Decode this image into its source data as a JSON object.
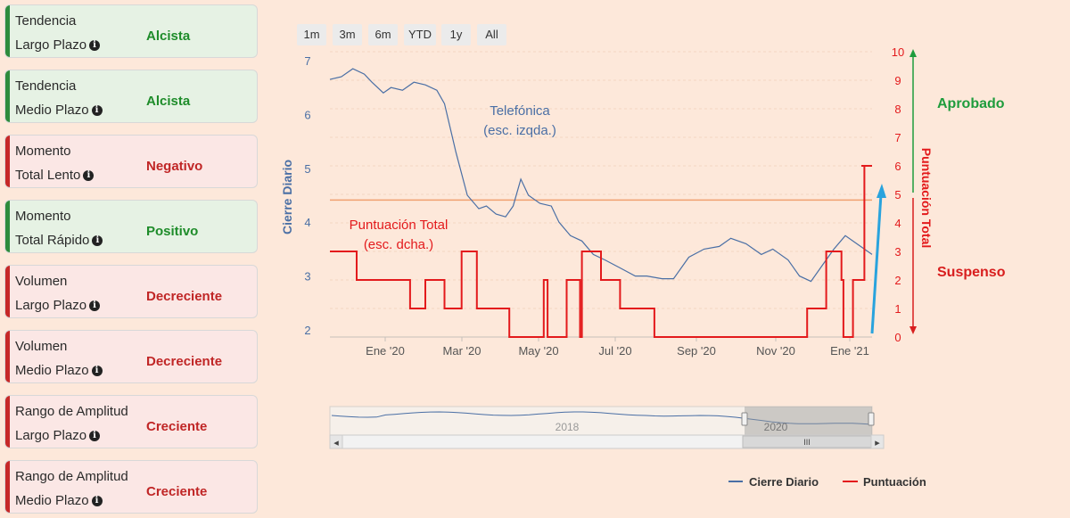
{
  "cards": [
    {
      "line1": "Tendencia",
      "line2": "Largo Plazo",
      "status": "Alcista",
      "tone": "green"
    },
    {
      "line1": "Tendencia",
      "line2": "Medio Plazo",
      "status": "Alcista",
      "tone": "green"
    },
    {
      "line1": "Momento",
      "line2": "Total Lento",
      "status": "Negativo",
      "tone": "red"
    },
    {
      "line1": "Momento",
      "line2": "Total Rápido",
      "status": "Positivo",
      "tone": "green"
    },
    {
      "line1": "Volumen",
      "line2": "Largo Plazo",
      "status": "Decreciente",
      "tone": "red"
    },
    {
      "line1": "Volumen",
      "line2": "Medio Plazo",
      "status": "Decreciente",
      "tone": "red"
    },
    {
      "line1": "Rango de Amplitud",
      "line2": "Largo Plazo",
      "status": "Creciente",
      "tone": "red"
    },
    {
      "line1": "Rango de Amplitud",
      "line2": "Medio Plazo",
      "status": "Creciente",
      "tone": "red"
    }
  ],
  "info_icon": "info-circle-icon",
  "range_buttons": [
    "1m",
    "3m",
    "6m",
    "YTD",
    "1y",
    "All"
  ],
  "labels": {
    "approved": "Aprobado",
    "failed": "Suspenso"
  },
  "colors": {
    "price": "#4a6fa5",
    "score": "#e31a1c",
    "approved": "#1e9c3c",
    "threshold": "#f0a070",
    "arrow": "#29a3dd"
  },
  "chart_data": {
    "type": "line",
    "left_axis": {
      "label": "Cierre Diario",
      "range": [
        2,
        7
      ],
      "ticks": [
        "2",
        "3",
        "4",
        "5",
        "6",
        "7"
      ]
    },
    "right_axis": {
      "label": "Puntuación Total",
      "range": [
        0,
        10
      ],
      "ticks": [
        "0",
        "1",
        "2",
        "3",
        "4",
        "5",
        "6",
        "7",
        "8",
        "9",
        "10"
      ]
    },
    "x_ticks": [
      "Ene '20",
      "Mar '20",
      "May '20",
      "Jul '20",
      "Sep '20",
      "Nov '20",
      "Ene '21"
    ],
    "annotations": [
      {
        "line1": "Telefónica",
        "line2": "(esc. izqda.)"
      },
      {
        "line1": "Puntuación Total",
        "line2": "(esc. dcha.)"
      }
    ],
    "threshold": 4.8,
    "series": [
      {
        "name": "Cierre Diario",
        "axis": "left",
        "x": [
          0,
          0.3,
          0.6,
          0.9,
          1.1,
          1.4,
          1.6,
          1.9,
          2.2,
          2.5,
          2.8,
          3.0,
          3.3,
          3.6,
          3.9,
          4.1,
          4.35,
          4.6,
          4.8,
          5.0,
          5.2,
          5.5,
          5.8,
          6.0,
          6.3,
          6.6,
          6.9,
          7.2,
          7.6,
          8.0,
          8.3,
          8.7,
          9.0,
          9.4,
          9.8,
          10.2,
          10.5,
          10.9,
          11.3,
          11.6,
          12.0,
          12.3,
          12.6,
          12.9,
          13.2,
          13.5,
          13.8,
          14.2
        ],
        "values": [
          6.65,
          6.7,
          6.85,
          6.75,
          6.6,
          6.4,
          6.5,
          6.45,
          6.6,
          6.55,
          6.45,
          6.2,
          5.3,
          4.5,
          4.25,
          4.3,
          4.15,
          4.1,
          4.3,
          4.8,
          4.5,
          4.35,
          4.3,
          4.0,
          3.75,
          3.65,
          3.4,
          3.3,
          3.15,
          3.0,
          3.0,
          2.95,
          2.95,
          3.35,
          3.5,
          3.55,
          3.7,
          3.6,
          3.4,
          3.5,
          3.3,
          3.0,
          2.9,
          3.2,
          3.5,
          3.75,
          3.6,
          3.4
        ]
      },
      {
        "name": "Puntuación",
        "axis": "right",
        "x": [
          0,
          0.7,
          1.6,
          2.1,
          2.5,
          3.0,
          3.2,
          3.45,
          3.85,
          4.7,
          5.35,
          5.6,
          5.7,
          6.2,
          6.55,
          6.6,
          7.1,
          7.6,
          8.5,
          10.0,
          11.5,
          12.0,
          12.5,
          13.0,
          13.4,
          13.45,
          13.7,
          14.0
        ],
        "values": [
          3,
          2,
          2,
          1,
          2,
          1,
          1,
          3,
          1,
          0,
          0,
          2,
          0,
          2,
          0,
          3,
          2,
          1,
          0,
          0,
          0,
          0,
          1,
          3,
          2,
          0,
          2,
          6
        ]
      }
    ]
  },
  "navigator": {
    "year_labels": [
      "2018",
      "2020"
    ],
    "scroll_left": "◂",
    "scroll_right": "▸",
    "scroll_grip": "III"
  },
  "legend": [
    {
      "label": "Cierre Diario",
      "color": "#4a6fa5"
    },
    {
      "label": "Puntuación",
      "color": "#e31a1c"
    }
  ]
}
